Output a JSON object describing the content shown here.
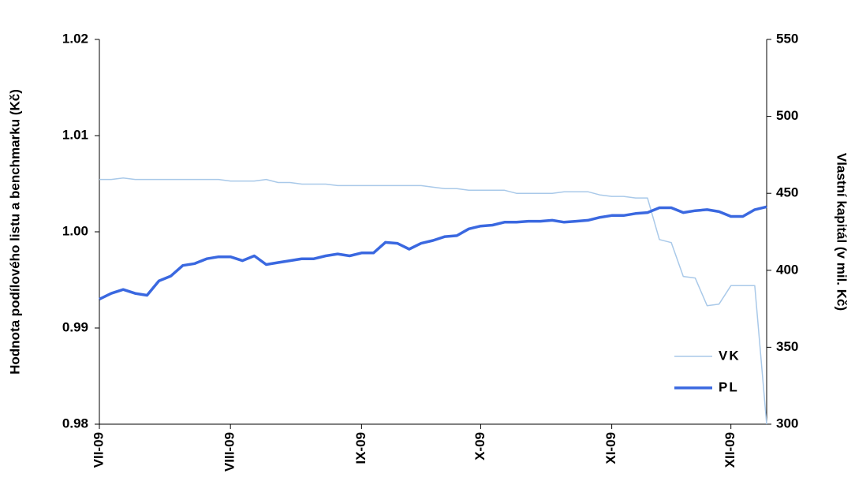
{
  "chart_data": {
    "type": "line",
    "ylabel": "Hodnota podílového listu a benchmarku (Kč)",
    "y2label": "Vlastní kapitál (v mil. Kč)",
    "categories": [
      "VII-09",
      null,
      null,
      null,
      null,
      null,
      null,
      null,
      null,
      null,
      null,
      "VIII-09",
      null,
      null,
      null,
      null,
      null,
      null,
      null,
      null,
      null,
      null,
      "IX-09",
      null,
      null,
      null,
      null,
      null,
      null,
      null,
      null,
      null,
      "X-09",
      null,
      null,
      null,
      null,
      null,
      null,
      null,
      null,
      null,
      null,
      "XI-09",
      null,
      null,
      null,
      null,
      null,
      null,
      null,
      null,
      null,
      "XII-09",
      null,
      null,
      null
    ],
    "series": [
      {
        "name": "VK",
        "color": "#a9c9e9",
        "axis": "y2",
        "values": [
          459,
          459,
          460,
          459,
          459,
          459,
          459,
          459,
          459,
          459,
          459,
          458,
          458,
          458,
          459,
          457,
          457,
          456,
          456,
          456,
          455,
          455,
          455,
          455,
          455,
          455,
          455,
          455,
          454,
          453,
          453,
          452,
          452,
          452,
          452,
          450,
          450,
          450,
          450,
          451,
          451,
          451,
          449,
          448,
          448,
          447,
          447,
          420,
          418,
          396,
          395,
          377,
          378,
          390,
          390,
          390,
          300
        ]
      },
      {
        "name": "PL",
        "color": "#3a68e0",
        "values": [
          0.993,
          0.9936,
          0.994,
          0.9936,
          0.9934,
          0.9949,
          0.9954,
          0.9965,
          0.9967,
          0.9972,
          0.9974,
          0.9974,
          0.997,
          0.9975,
          0.9966,
          0.9968,
          0.997,
          0.9972,
          0.9972,
          0.9975,
          0.9977,
          0.9975,
          0.9978,
          0.9978,
          0.9989,
          0.9988,
          0.9982,
          0.9988,
          0.9991,
          0.9995,
          0.9996,
          1.0003,
          1.0006,
          1.0007,
          1.001,
          1.001,
          1.0011,
          1.0011,
          1.0012,
          1.001,
          1.0011,
          1.0012,
          1.0015,
          1.0017,
          1.0017,
          1.0019,
          1.002,
          1.0025,
          1.0025,
          1.002,
          1.0022,
          1.0023,
          1.0021,
          1.0016,
          1.0016,
          1.0023,
          1.0026
        ]
      }
    ],
    "ylim": [
      0.98,
      1.02
    ],
    "yticks": [
      0.98,
      0.99,
      {
        "value": 1,
        "label": "1.00"
      },
      1.01,
      1.02
    ],
    "y2lim": [
      300,
      550
    ],
    "y2ticks": [
      300,
      350,
      400,
      450,
      500,
      550
    ],
    "legend": "lower right"
  }
}
